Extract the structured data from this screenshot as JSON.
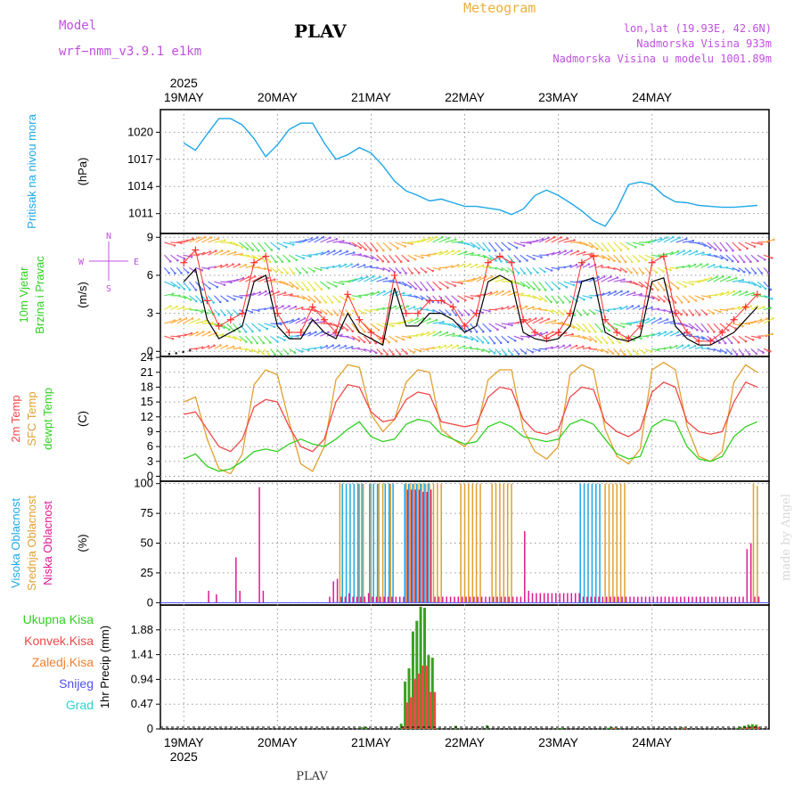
{
  "header": {
    "model_label": "Model",
    "model_name": "wrf−nmm_v3.9.1  e1km",
    "station": "PLAV",
    "product": "Meteogram",
    "lonlat": "lon,lat (19.93E, 42.6N)",
    "elevation": "Nadmorska Visina 933m",
    "model_elevation": "Nadmorska Visina u modelu 1001.89m"
  },
  "footer": {
    "station": "PLAV",
    "credit": "made by Angel"
  },
  "colors": {
    "pressure": "#1ea7e8",
    "t2m": "#f04848",
    "sfc": "#e0a030",
    "dewpt": "#30d020",
    "wind_speed": "#000000",
    "gust": "#ff3030",
    "cloud_high": "#1ea7e8",
    "cloud_mid": "#e0a030",
    "cloud_low": "#e01890",
    "precip_total": "#3aa020",
    "precip_conv": "#f04848",
    "label_magenta": "#c050e0",
    "label_orange": "#e8b040"
  },
  "chart_data": [
    {
      "type": "line",
      "panel": "pressure",
      "ylabel": "(hPa)",
      "side_labels": [
        {
          "text": "Pritisak na nivou mora",
          "color": "#1ea7e8"
        }
      ],
      "yticks": [
        1011,
        1014,
        1017,
        1020
      ],
      "ylim": [
        1008.8,
        1022.5
      ],
      "x_days": [
        "19MAY",
        "20MAY",
        "21MAY",
        "22MAY",
        "23MAY",
        "24MAY"
      ],
      "year": "2025",
      "x": [
        0,
        3,
        6,
        9,
        12,
        15,
        18,
        21,
        24,
        27,
        30,
        33,
        36,
        39,
        42,
        45,
        48,
        51,
        54,
        57,
        60,
        63,
        66,
        69,
        72,
        75,
        78,
        81,
        84,
        87,
        90,
        93,
        96,
        99,
        102,
        105,
        108,
        111,
        114,
        117,
        120,
        123,
        126,
        129,
        132,
        135,
        138,
        141,
        144,
        147
      ],
      "series": [
        {
          "name": "",
          "values": [
            1018.8,
            1018.0,
            1019.8,
            1021.5,
            1021.5,
            1020.8,
            1019.3,
            1017.3,
            1018.6,
            1020.3,
            1021.0,
            1021.0,
            1018.8,
            1017.0,
            1017.5,
            1018.3,
            1017.7,
            1016.3,
            1014.6,
            1013.5,
            1013.0,
            1012.4,
            1012.6,
            1012.2,
            1011.8,
            1011.8,
            1011.6,
            1011.4,
            1010.9,
            1011.5,
            1013.0,
            1013.6,
            1013.0,
            1012.2,
            1011.3,
            1010.2,
            1009.6,
            1011.5,
            1014.2,
            1014.5,
            1014.2,
            1013.0,
            1012.3,
            1012.2,
            1011.9,
            1011.8,
            1011.7,
            1011.7,
            1011.8,
            1011.9
          ]
        }
      ]
    },
    {
      "type": "line",
      "panel": "wind",
      "ylabel": "(m/s)",
      "side_labels": [
        {
          "text": "10m Vjetar",
          "color": "#30d020"
        },
        {
          "text": "Brzina i Pravac",
          "color": "#30d020"
        }
      ],
      "compass": {
        "n": "N",
        "e": "E",
        "w": "W",
        "s": "S"
      },
      "yticks": [
        0,
        3,
        6,
        9
      ],
      "ylim": [
        -0.4,
        9.3
      ],
      "x": [
        0,
        3,
        6,
        9,
        12,
        15,
        18,
        21,
        24,
        27,
        30,
        33,
        36,
        39,
        42,
        45,
        48,
        51,
        54,
        57,
        60,
        63,
        66,
        69,
        72,
        75,
        78,
        81,
        84,
        87,
        90,
        93,
        96,
        99,
        102,
        105,
        108,
        111,
        114,
        117,
        120,
        123,
        126,
        129,
        132,
        135,
        138,
        141,
        144,
        147
      ],
      "series": [
        {
          "name": "",
          "values": [
            5.5,
            6.5,
            2.5,
            1.0,
            1.5,
            2.0,
            5.5,
            6.0,
            2.0,
            1.0,
            1.0,
            2.5,
            1.5,
            1.0,
            3.0,
            1.5,
            1.0,
            0.5,
            5.0,
            2.0,
            2.0,
            3.0,
            3.0,
            2.5,
            1.5,
            2.0,
            5.5,
            6.0,
            5.5,
            1.5,
            1.0,
            0.8,
            1.0,
            2.0,
            5.5,
            5.8,
            1.5,
            1.0,
            0.8,
            1.2,
            5.5,
            5.8,
            2.0,
            1.0,
            0.5,
            0.5,
            1.0,
            1.5,
            2.5,
            3.5
          ]
        },
        {
          "name": "",
          "values": [
            7.0,
            8.0,
            4.0,
            2.0,
            2.5,
            3.0,
            7.0,
            7.5,
            3.0,
            1.5,
            1.5,
            3.5,
            2.5,
            1.5,
            4.5,
            2.5,
            1.5,
            1.0,
            6.0,
            3.0,
            3.0,
            4.0,
            4.0,
            3.5,
            2.0,
            3.0,
            7.0,
            7.5,
            7.0,
            2.5,
            1.5,
            1.0,
            1.5,
            3.0,
            7.0,
            7.5,
            2.5,
            1.5,
            1.0,
            2.0,
            7.0,
            7.5,
            3.0,
            1.5,
            0.8,
            0.8,
            1.5,
            2.5,
            3.5,
            4.5
          ]
        }
      ]
    },
    {
      "type": "line",
      "panel": "temperature",
      "ylabel": "(C)",
      "side_labels": [
        {
          "text": "2m Temp",
          "color": "#f04848"
        },
        {
          "text": "SFC Temp",
          "color": "#e0a030"
        },
        {
          "text": "dewpt Temp",
          "color": "#30d020"
        }
      ],
      "yticks": [
        0,
        3,
        6,
        9,
        12,
        15,
        18,
        21,
        24
      ],
      "ylim": [
        -1,
        24.2
      ],
      "x": [
        0,
        3,
        6,
        9,
        12,
        15,
        18,
        21,
        24,
        27,
        30,
        33,
        36,
        39,
        42,
        45,
        48,
        51,
        54,
        57,
        60,
        63,
        66,
        69,
        72,
        75,
        78,
        81,
        84,
        87,
        90,
        93,
        96,
        99,
        102,
        105,
        108,
        111,
        114,
        117,
        120,
        123,
        126,
        129,
        132,
        135,
        138,
        141,
        144,
        147
      ],
      "series": [
        {
          "name": "",
          "values": [
            12.5,
            13.0,
            9.5,
            6.0,
            5.0,
            7.5,
            14.0,
            15.5,
            15.0,
            10.0,
            6.0,
            5.0,
            7.5,
            15.0,
            18.5,
            18.0,
            13.0,
            11.0,
            11.5,
            15.5,
            17.0,
            16.5,
            11.0,
            10.5,
            10.0,
            10.5,
            16.0,
            18.0,
            17.5,
            11.5,
            9.0,
            8.5,
            9.5,
            16.0,
            18.0,
            17.5,
            11.0,
            9.0,
            8.0,
            9.5,
            17.0,
            19.0,
            18.0,
            11.0,
            9.0,
            8.5,
            9.0,
            15.0,
            19.0,
            18.0
          ]
        },
        {
          "name": "",
          "values": [
            15.0,
            16.0,
            7.5,
            1.5,
            0.5,
            4.5,
            18.5,
            21.5,
            20.5,
            11.0,
            2.5,
            1.0,
            6.0,
            19.5,
            22.5,
            22.0,
            12.5,
            9.0,
            11.5,
            19.0,
            21.5,
            21.0,
            9.5,
            7.5,
            6.0,
            9.0,
            19.5,
            21.5,
            21.5,
            9.5,
            5.0,
            3.5,
            6.0,
            20.5,
            22.5,
            21.5,
            9.5,
            4.0,
            2.5,
            5.5,
            21.5,
            23.0,
            21.5,
            10.0,
            4.0,
            3.0,
            5.0,
            19.0,
            22.5,
            21.0
          ]
        },
        {
          "name": "",
          "values": [
            3.5,
            4.5,
            2.0,
            1.0,
            1.5,
            3.0,
            5.0,
            5.5,
            5.0,
            6.5,
            7.5,
            6.5,
            6.0,
            7.5,
            9.5,
            11.0,
            8.0,
            7.0,
            7.5,
            10.5,
            11.5,
            11.0,
            8.5,
            7.5,
            6.5,
            7.0,
            10.0,
            11.0,
            10.0,
            8.0,
            7.5,
            7.0,
            7.5,
            10.5,
            11.5,
            10.5,
            7.5,
            4.5,
            3.5,
            4.0,
            10.0,
            11.5,
            11.0,
            6.0,
            3.5,
            3.0,
            4.0,
            8.0,
            10.0,
            11.0
          ]
        }
      ]
    },
    {
      "type": "bar",
      "panel": "clouds",
      "ylabel": "(%)",
      "side_labels": [
        {
          "text": "Visoka Oblacnost",
          "color": "#1ea7e8"
        },
        {
          "text": "Srednja Oblacnost",
          "color": "#e0a030"
        },
        {
          "text": "Niska Oblacnost",
          "color": "#e01890"
        }
      ],
      "yticks": [
        0,
        25,
        50,
        75,
        100
      ],
      "ylim": [
        -2,
        102
      ],
      "x": [
        6,
        8,
        13,
        14,
        19,
        20,
        37,
        38,
        39,
        40,
        41,
        42,
        43,
        44,
        45,
        46,
        47,
        48,
        49,
        50,
        51,
        52,
        53,
        54,
        55,
        56,
        57,
        58,
        59,
        60,
        61,
        62,
        63,
        64,
        65,
        66,
        67,
        68,
        69,
        70,
        71,
        72,
        73,
        74,
        75,
        76,
        77,
        78,
        79,
        80,
        81,
        82,
        83,
        84,
        85,
        86,
        87,
        88,
        89,
        90,
        91,
        92,
        93,
        94,
        95,
        96,
        97,
        98,
        99,
        100,
        101,
        102,
        103,
        104,
        105,
        106,
        107,
        108,
        109,
        110,
        111,
        112,
        113,
        114,
        115,
        116,
        117,
        118,
        119,
        120,
        121,
        122,
        123,
        124,
        125,
        126,
        127,
        128,
        129,
        130,
        131,
        132,
        133,
        134,
        135,
        136,
        137,
        138,
        139,
        140,
        141,
        142,
        143,
        144,
        145,
        146,
        147
      ],
      "series": [
        {
          "name": "",
          "values": [
            0,
            0,
            0,
            0,
            0,
            0,
            0,
            0,
            0,
            0,
            100,
            100,
            100,
            100,
            100,
            100,
            0,
            100,
            100,
            100,
            0,
            100,
            100,
            100,
            0,
            0,
            100,
            100,
            100,
            100,
            100,
            100,
            100,
            0,
            0,
            0,
            0,
            0,
            0,
            0,
            0,
            0,
            0,
            0,
            0,
            0,
            0,
            0,
            0,
            0,
            0,
            0,
            0,
            0,
            0,
            0,
            0,
            0,
            0,
            0,
            0,
            0,
            0,
            0,
            0,
            0,
            0,
            0,
            0,
            0,
            0,
            100,
            100,
            100,
            100,
            100,
            100,
            0,
            0,
            0,
            0,
            0,
            0,
            0,
            0,
            0,
            0,
            0,
            0,
            0,
            0,
            0,
            0,
            0,
            0,
            0,
            0,
            0,
            0,
            0,
            0,
            0,
            0,
            0,
            0,
            0,
            0,
            0,
            0,
            0,
            0,
            0,
            0,
            0,
            0,
            0,
            0
          ]
        },
        {
          "name": "",
          "values": [
            0,
            0,
            0,
            0,
            0,
            0,
            0,
            0,
            0,
            100,
            0,
            0,
            0,
            0,
            100,
            100,
            0,
            100,
            0,
            100,
            100,
            0,
            100,
            0,
            0,
            0,
            100,
            100,
            100,
            100,
            100,
            100,
            100,
            100,
            100,
            100,
            0,
            0,
            0,
            0,
            100,
            100,
            100,
            100,
            100,
            100,
            0,
            0,
            100,
            100,
            100,
            100,
            100,
            100,
            0,
            0,
            0,
            0,
            0,
            0,
            0,
            0,
            0,
            0,
            0,
            0,
            0,
            0,
            0,
            0,
            0,
            0,
            0,
            0,
            0,
            0,
            0,
            100,
            100,
            100,
            100,
            100,
            100,
            0,
            0,
            0,
            0,
            0,
            0,
            0,
            0,
            0,
            0,
            0,
            0,
            0,
            0,
            0,
            0,
            0,
            0,
            0,
            0,
            0,
            0,
            0,
            0,
            0,
            0,
            0,
            0,
            0,
            0,
            0,
            0,
            100,
            98
          ]
        },
        {
          "name": "",
          "values": [
            10,
            7,
            38,
            10,
            97,
            10,
            5,
            18,
            20,
            5,
            5,
            8,
            5,
            5,
            5,
            5,
            8,
            5,
            5,
            5,
            5,
            5,
            5,
            5,
            5,
            5,
            95,
            95,
            95,
            95,
            93,
            93,
            95,
            5,
            5,
            5,
            5,
            5,
            5,
            5,
            5,
            5,
            5,
            5,
            5,
            5,
            5,
            5,
            5,
            5,
            5,
            5,
            5,
            5,
            5,
            5,
            60,
            10,
            8,
            8,
            8,
            8,
            8,
            8,
            8,
            8,
            8,
            8,
            8,
            8,
            8,
            5,
            5,
            5,
            5,
            5,
            5,
            5,
            5,
            5,
            5,
            5,
            5,
            5,
            5,
            5,
            5,
            5,
            5,
            5,
            5,
            5,
            5,
            5,
            5,
            5,
            5,
            5,
            5,
            5,
            5,
            5,
            5,
            5,
            5,
            5,
            5,
            5,
            5,
            5,
            5,
            5,
            5,
            45,
            50,
            5,
            5
          ]
        }
      ]
    },
    {
      "type": "bar",
      "panel": "precipitation",
      "ylabel": "1hr Precip (mm)",
      "legend": [
        {
          "text": "Ukupna Kisa",
          "color": "#30d020"
        },
        {
          "text": "Konvek.Kisa",
          "color": "#f04848"
        },
        {
          "text": "Zaledj.Kisa",
          "color": "#f08030"
        },
        {
          "text": "Snijeg",
          "color": "#5050f0"
        },
        {
          "text": "Grad",
          "color": "#30d0d0"
        }
      ],
      "yticks": [
        0,
        0.47,
        0.94,
        1.41,
        1.88
      ],
      "ytick_labels": [
        "0",
        "0.47",
        "0.94",
        "1.41",
        "1.88"
      ],
      "ylim": [
        0,
        2.35
      ],
      "x": [
        46,
        47,
        56,
        57,
        58,
        59,
        60,
        61,
        62,
        63,
        64,
        65,
        70,
        78,
        96,
        97,
        109,
        110,
        111,
        128,
        142,
        143,
        144,
        145,
        146,
        147
      ],
      "series": [
        {
          "name": "",
          "values": [
            0.03,
            0.04,
            0.1,
            0.9,
            1.15,
            1.85,
            2.05,
            2.32,
            2.3,
            1.4,
            1.35,
            0.02,
            0.06,
            0.07,
            0.01,
            0.02,
            0.02,
            0.03,
            0.02,
            0.03,
            0.02,
            0.04,
            0.06,
            0.08,
            0.09,
            0.08
          ]
        },
        {
          "name": "",
          "values": [
            0.0,
            0.0,
            0.05,
            0.5,
            0.6,
            0.95,
            1.05,
            1.2,
            1.2,
            0.7,
            0.7,
            0.0,
            0.0,
            0.0,
            0.0,
            0.0,
            0.0,
            0.02,
            0.0,
            0.02,
            0.0,
            0.02,
            0.03,
            0.04,
            0.05,
            0.04
          ]
        }
      ]
    }
  ]
}
